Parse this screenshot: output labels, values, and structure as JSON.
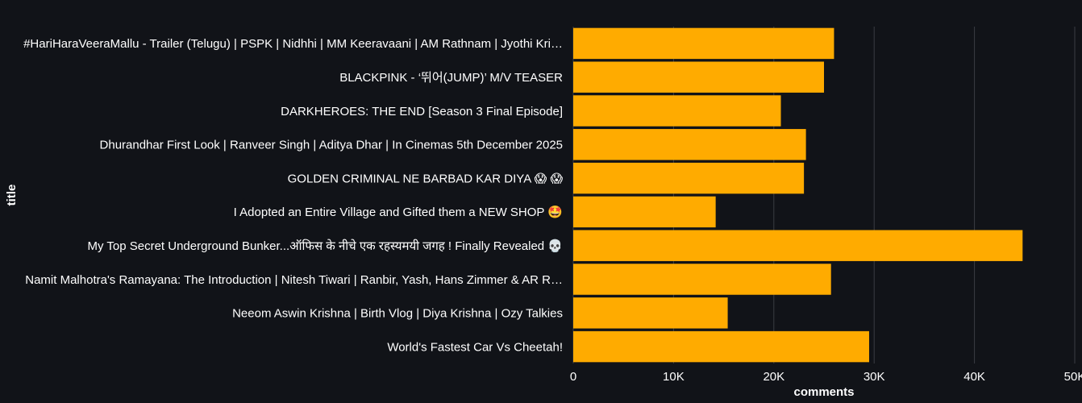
{
  "chart_data": {
    "type": "bar",
    "orientation": "horizontal",
    "xlabel": "comments",
    "ylabel": "title",
    "xlim": [
      0,
      50000
    ],
    "x_ticks": [
      0,
      10000,
      20000,
      30000,
      40000,
      50000
    ],
    "x_tick_labels": [
      "0",
      "10K",
      "20K",
      "30K",
      "40K",
      "50K"
    ],
    "grid": "vertical",
    "bar_color": "#ffab00",
    "background": "#111318",
    "categories": [
      "#HariHaraVeeraMallu - Trailer (Telugu) | PSPK | Nidhhi | MM Keeravaani | AM Rathnam | Jyothi Kri…",
      "BLACKPINK - ‘뛰어(JUMP)’ M/V TEASER",
      "DARKHEROES: THE END [Season 3 Final Episode]",
      "Dhurandhar First Look | Ranveer Singh | Aditya Dhar | In Cinemas 5th December 2025",
      "GOLDEN CRIMINAL NE BARBAD KAR DIYA 😱 😱",
      "I Adopted an Entire Village and Gifted them a NEW SHOP 🤩",
      "My Top Secret Underground Bunker...ऑफिस के नीचे एक रहस्यमयी जगह ! Finally Revealed 💀",
      "Namit Malhotra's Ramayana: The Introduction | Nitesh Tiwari | Ranbir, Yash, Hans Zimmer & AR R…",
      "Neeom Aswin Krishna | Birth Vlog | Diya Krishna | Ozy Talkies",
      "World's Fastest Car Vs Cheetah!"
    ],
    "values": [
      26000,
      25000,
      20700,
      23200,
      23000,
      14200,
      44800,
      25700,
      15400,
      29500
    ]
  }
}
